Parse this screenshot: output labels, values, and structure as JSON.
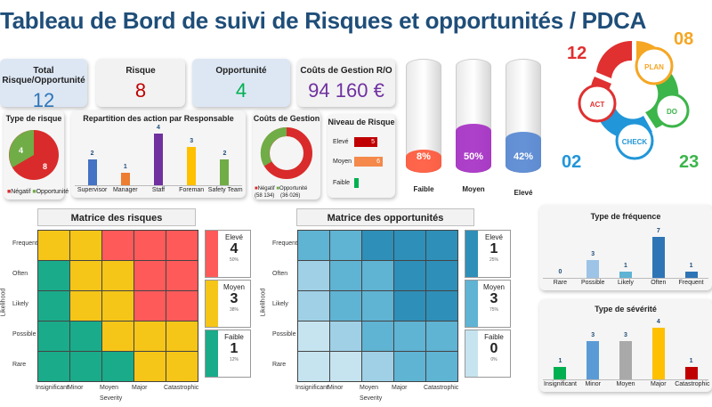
{
  "title": "Tableau de Bord de suivi de Risques et opportunités / PDCA",
  "kpis": {
    "total": {
      "label": "Total Risque/Opportunité",
      "value": "12",
      "color": "#2e75b6"
    },
    "risque": {
      "label": "Risque",
      "value": "8",
      "color": "#c00000"
    },
    "opportunite": {
      "label": "Opportunité",
      "value": "4",
      "color": "#00b050"
    },
    "couts": {
      "label": "Coûts de Gestion R/O",
      "value": "94 160 €",
      "color": "#7030a0"
    }
  },
  "type_risque": {
    "title": "Type de risque",
    "negatif_value": "8",
    "positif_value": "4",
    "legend": [
      "Négatif",
      "Opportunité"
    ]
  },
  "repartition": {
    "title": "Repartition des action par Responsable",
    "categories": [
      "Supervisor",
      "Manager",
      "Staff",
      "Foreman",
      "Safety Team"
    ],
    "values": [
      "2",
      "1",
      "4",
      "3",
      "2"
    ]
  },
  "couts_gestion": {
    "title": "Coûts de Gestion",
    "legend_neg": "Négatif",
    "legend_neg_value": "(58 134)",
    "legend_opp": "Opportunité",
    "legend_opp_value": "(36 026)"
  },
  "niveau_risque": {
    "title": "Niveau de Risque",
    "rows": [
      {
        "label": "Elevé",
        "value": "5"
      },
      {
        "label": "Moyen",
        "value": "6"
      },
      {
        "label": "Faible",
        "value": ""
      }
    ]
  },
  "cylinders": [
    {
      "pct": "8%",
      "label": "Faible",
      "color": "#ff4b2b"
    },
    {
      "pct": "50%",
      "label": "Moyen",
      "color": "#a020c0"
    },
    {
      "pct": "42%",
      "label": "Elevé",
      "color": "#4a7fcf"
    }
  ],
  "pdca": {
    "plan": "PLAN",
    "do": "DO",
    "check": "CHECK",
    "act": "ACT",
    "n_act": "12",
    "n_plan": "08",
    "n_check": "02",
    "n_do": "23"
  },
  "matrice_risques": {
    "title": "Matrice des risques",
    "rows": [
      "Frequent",
      "Often",
      "Likely",
      "Possible",
      "Rare"
    ],
    "cols": [
      "Insignificant",
      "Minor",
      "Moyen",
      "Major",
      "Catastrophic"
    ],
    "ylabel": "Likelihood",
    "xlabel": "Severity",
    "legend": [
      {
        "label": "Elevé",
        "value": "4",
        "pct": "50%"
      },
      {
        "label": "Moyen",
        "value": "3",
        "pct": "38%"
      },
      {
        "label": "Faible",
        "value": "1",
        "pct": "12%"
      }
    ]
  },
  "matrice_opp": {
    "title": "Matrice des opportunités",
    "rows": [
      "Frequent",
      "Often",
      "Likely",
      "Possible",
      "Rare"
    ],
    "cols": [
      "Insignificant",
      "Minor",
      "Moyen",
      "Major",
      "Catastrophic"
    ],
    "ylabel": "Likelihood",
    "xlabel": "Severity",
    "legend": [
      {
        "label": "Elevé",
        "value": "1",
        "pct": "25%"
      },
      {
        "label": "Moyen",
        "value": "3",
        "pct": "75%"
      },
      {
        "label": "Faible",
        "value": "0",
        "pct": "0%"
      }
    ]
  },
  "type_frequence": {
    "title": "Type de fréquence",
    "categories": [
      "Rare",
      "Possible",
      "Likely",
      "Often",
      "Frequent"
    ],
    "values": [
      "0",
      "3",
      "1",
      "7",
      "1"
    ]
  },
  "type_severite": {
    "title": "Type de sévérité",
    "categories": [
      "Insignificant",
      "Minor",
      "Moyen",
      "Major",
      "Catastrophic"
    ],
    "values": [
      "1",
      "3",
      "3",
      "4",
      "1"
    ]
  },
  "colors": {
    "red": "#ff5a5a",
    "yellow": "#f5c518",
    "green": "#1aab8a",
    "opp_dark": "#2e8fb8",
    "opp_mid": "#5fb3d3",
    "opp_light": "#9fd0e6",
    "opp_lighter": "#c6e4f0"
  }
}
